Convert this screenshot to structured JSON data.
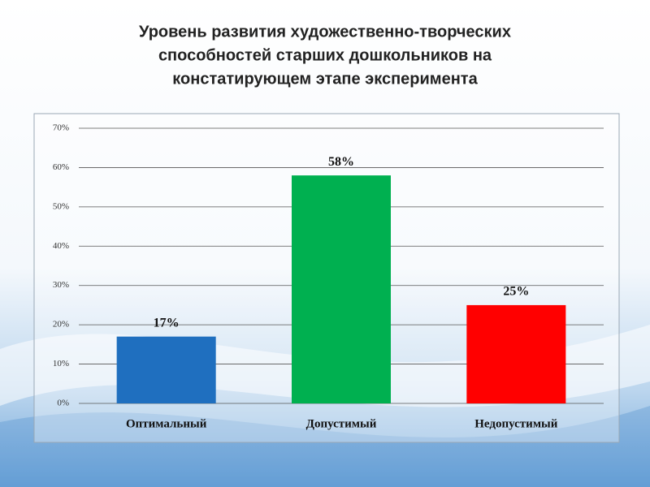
{
  "chart_data": {
    "type": "bar",
    "title": [
      "Уровень развития художественно-творческих",
      "способностей старших дошкольников на",
      "констатирующем этапе эксперимента"
    ],
    "categories": [
      "Оптимальный",
      "Допустимый",
      "Недопустимый"
    ],
    "values": [
      17,
      58,
      25
    ],
    "value_labels": [
      "17%",
      "58%",
      "25%"
    ],
    "colors": [
      "#1f6fbf",
      "#00b050",
      "#ff0000"
    ],
    "ylim": [
      0,
      70
    ],
    "yticks": [
      {
        "value": 0,
        "label": "0%"
      },
      {
        "value": 10,
        "label": "10%"
      },
      {
        "value": 20,
        "label": "20%"
      },
      {
        "value": 30,
        "label": "30%"
      },
      {
        "value": 40,
        "label": "40%"
      },
      {
        "value": 50,
        "label": "50%"
      },
      {
        "value": 60,
        "label": "60%"
      },
      {
        "value": 70,
        "label": "70%"
      }
    ],
    "grid": true
  }
}
